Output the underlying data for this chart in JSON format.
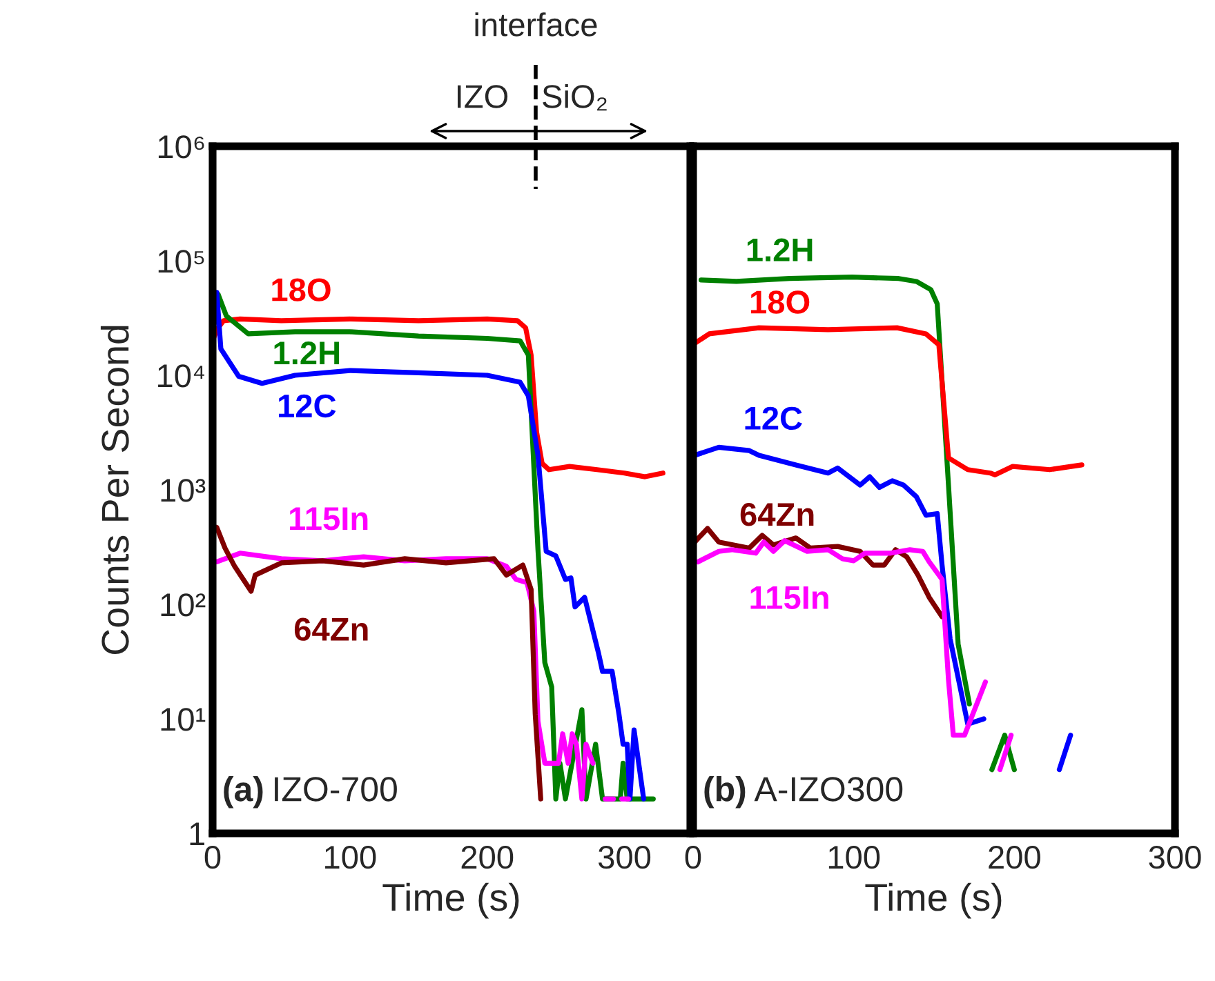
{
  "chart_data": [
    {
      "type": "line",
      "xlabel": "Time (s)",
      "ylabel": "Counts Per Second",
      "log": "y",
      "grid": false,
      "legend": false,
      "xlim": [
        0,
        348
      ],
      "xticks": [
        0,
        100,
        200,
        300
      ],
      "ylim": [
        1,
        1000000
      ],
      "yticks": [
        {
          "value": 1,
          "label": "1"
        },
        {
          "value": 10,
          "label": "10¹"
        },
        {
          "value": 100,
          "label": "10²"
        },
        {
          "value": 1000,
          "label": "10³"
        },
        {
          "value": 10000,
          "label": "10⁴"
        },
        {
          "value": 100000,
          "label": "10⁵"
        },
        {
          "value": 1000000,
          "label": "10⁶"
        }
      ],
      "annotations": [
        "interface",
        "IZO",
        "SiO₂",
        "(a) IZO-700"
      ],
      "series": [
        {
          "name": "18O",
          "color": "#ff0000",
          "x": [
            0,
            3,
            8,
            20,
            50,
            100,
            150,
            200,
            222,
            228,
            232,
            236,
            240,
            245,
            260,
            280,
            300,
            315,
            328
          ],
          "values": [
            20000,
            25000,
            30000,
            31000,
            30000,
            31000,
            30000,
            31000,
            30000,
            26000,
            15000,
            3200,
            1700,
            1500,
            1600,
            1500,
            1400,
            1300,
            1400
          ]
        },
        {
          "name": "1.2H",
          "color": "#008000",
          "x": [
            0,
            4,
            10,
            26,
            60,
            100,
            150,
            200,
            224,
            230,
            237,
            242,
            247,
            250,
            253,
            257,
            269,
            272,
            279,
            284,
            297,
            299,
            302,
            321
          ],
          "values": [
            30000,
            51000,
            33000,
            23000,
            24000,
            24000,
            22000,
            21000,
            20000,
            15000,
            300,
            31,
            19,
            2,
            4.1,
            2,
            12,
            2,
            6,
            2,
            2,
            4.1,
            2,
            2
          ]
        },
        {
          "name": "12C",
          "color": "#0000ff",
          "x": [
            0,
            3,
            6,
            19,
            36,
            60,
            100,
            150,
            200,
            224,
            230,
            237,
            243,
            250,
            257,
            261,
            264,
            271,
            281,
            284,
            291,
            296,
            299,
            302,
            304,
            307,
            314
          ],
          "values": [
            20000,
            53000,
            17000,
            9800,
            8500,
            10000,
            11000,
            10500,
            10000,
            8700,
            6600,
            2000,
            290,
            265,
            165,
            170,
            95,
            115,
            38,
            26,
            26,
            11,
            6,
            6,
            2,
            8,
            2
          ]
        },
        {
          "name": "115In",
          "color": "#ff00ff",
          "x": [
            0,
            3,
            20,
            50,
            80,
            110,
            140,
            170,
            200,
            214,
            221,
            229,
            234,
            237,
            242,
            252,
            255,
            259,
            262,
            265,
            269,
            272,
            277,
            281,
            286,
            292,
            294,
            298,
            303
          ],
          "values": [
            240,
            235,
            280,
            250,
            240,
            260,
            240,
            250,
            250,
            215,
            165,
            155,
            87,
            9.5,
            4.1,
            4.1,
            7.4,
            4.1,
            7.4,
            6,
            2,
            6,
            4.1,
            null,
            2,
            2,
            null,
            2,
            2
          ]
        },
        {
          "name": "64Zn",
          "color": "#800000",
          "x": [
            0,
            3,
            9,
            16,
            28,
            31,
            50,
            80,
            110,
            140,
            170,
            205,
            214,
            226,
            232,
            235,
            239
          ],
          "values": [
            480,
            470,
            310,
            215,
            130,
            180,
            230,
            240,
            220,
            250,
            230,
            250,
            180,
            220,
            135,
            11,
            2
          ]
        }
      ]
    },
    {
      "type": "line",
      "xlabel": "Time (s)",
      "log": "y",
      "grid": false,
      "legend": false,
      "tick_labels": "x",
      "xlim": [
        0,
        300
      ],
      "xticks": [
        0,
        100,
        200,
        300
      ],
      "ylim": [
        1,
        1000000
      ],
      "annotations": [
        "(b) A-IZO300"
      ],
      "series": [
        {
          "name": "1.2H",
          "color": "#008000",
          "x": [
            5,
            27,
            60,
            99,
            128,
            139,
            148,
            152,
            159,
            165,
            172,
            180,
            186,
            194,
            200
          ],
          "values": [
            68000,
            66000,
            70000,
            72000,
            70000,
            66000,
            56000,
            42000,
            1100,
            45,
            13.5,
            null,
            3.6,
            7.2,
            3.6
          ]
        },
        {
          "name": "18O",
          "color": "#ff0000",
          "x": [
            1,
            10,
            41,
            84,
            127,
            145,
            153,
            159,
            171,
            185,
            188,
            199,
            222,
            242
          ],
          "values": [
            19000,
            23000,
            26000,
            25000,
            26000,
            23000,
            18500,
            1900,
            1500,
            1400,
            1350,
            1600,
            1500,
            1650
          ]
        },
        {
          "name": "12C",
          "color": "#0000ff",
          "x": [
            1,
            16,
            35,
            41,
            64,
            84,
            90,
            104,
            110,
            116,
            124,
            131,
            139,
            145,
            152,
            155,
            160,
            171,
            181,
            205,
            228,
            235
          ],
          "values": [
            2000,
            2350,
            2200,
            2000,
            1650,
            1400,
            1550,
            1100,
            1300,
            1050,
            1200,
            1100,
            870,
            600,
            620,
            220,
            50,
            9,
            10,
            null,
            3.6,
            7.2
          ]
        },
        {
          "name": "64Zn",
          "color": "#800000",
          "x": [
            1,
            9,
            16,
            35,
            43,
            50,
            64,
            73,
            90,
            104,
            112,
            119,
            126,
            133,
            140,
            147,
            155
          ],
          "values": [
            350,
            460,
            350,
            310,
            400,
            330,
            380,
            310,
            320,
            290,
            220,
            220,
            300,
            260,
            180,
            115,
            78
          ]
        },
        {
          "name": "115In",
          "color": "#ff00ff",
          "x": [
            3,
            16,
            24,
            39,
            44,
            50,
            57,
            71,
            84,
            93,
            100,
            107,
            123,
            135,
            143,
            147,
            155,
            159,
            162,
            169,
            182,
            186,
            191,
            198
          ],
          "values": [
            235,
            290,
            300,
            280,
            350,
            290,
            360,
            290,
            300,
            250,
            240,
            280,
            280,
            300,
            290,
            235,
            165,
            22,
            7.2,
            7.2,
            21,
            null,
            3.6,
            7.2
          ]
        }
      ]
    }
  ]
}
